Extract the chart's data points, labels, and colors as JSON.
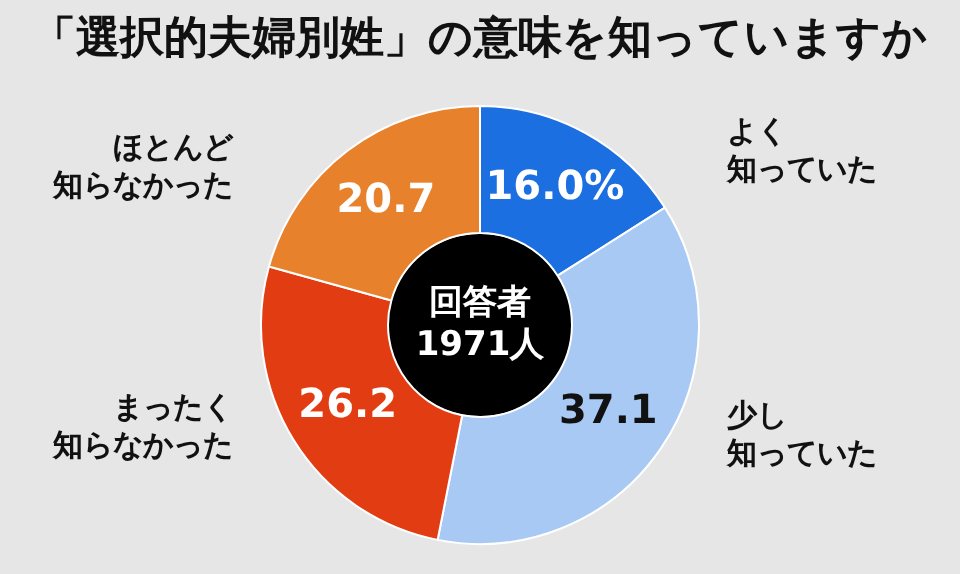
{
  "chart_data": {
    "type": "donut",
    "title": "「選択的夫婦別姓」の意味を知っていますか",
    "categories": [
      "よく知っていた",
      "少し知っていた",
      "まったく知らなかった",
      "ほとんど知らなかった"
    ],
    "values": [
      16.0,
      37.1,
      26.2,
      20.7
    ],
    "value_labels": [
      "16.0%",
      "37.1",
      "26.2",
      "20.7"
    ],
    "colors": [
      "#1b6fe0",
      "#a9c9f5",
      "#e23c12",
      "#e8812c"
    ],
    "annotations": [
      "回答者1971人"
    ],
    "legend": false
  }
}
